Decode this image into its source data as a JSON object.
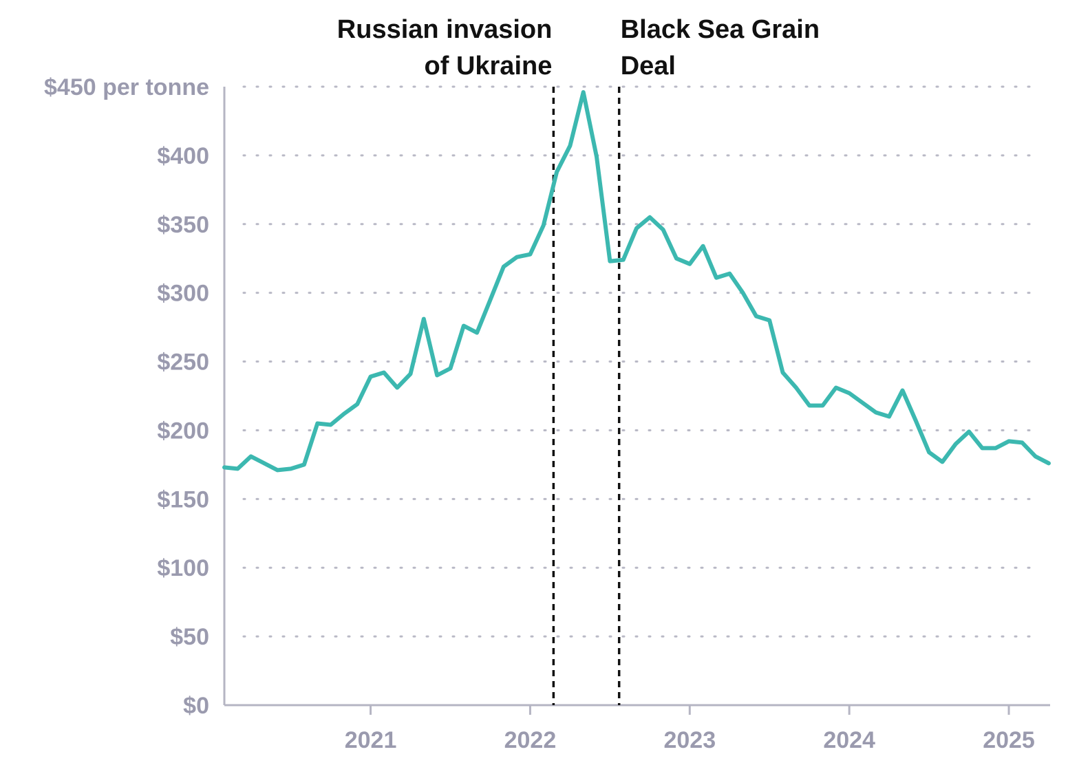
{
  "chart_data": {
    "type": "line",
    "title": "",
    "xlabel": "",
    "ylabel": "",
    "y_unit_label": "per tonne",
    "ylim": [
      0,
      450
    ],
    "xlim": [
      "2020-02",
      "2025-04"
    ],
    "grid": true,
    "grid_style": "dotted horizontal",
    "y_ticks": [
      {
        "value": 0,
        "label": "$0"
      },
      {
        "value": 50,
        "label": "$50"
      },
      {
        "value": 100,
        "label": "$100"
      },
      {
        "value": 150,
        "label": "$150"
      },
      {
        "value": 200,
        "label": "$200"
      },
      {
        "value": 250,
        "label": "$250"
      },
      {
        "value": 300,
        "label": "$300"
      },
      {
        "value": 350,
        "label": "$350"
      },
      {
        "value": 400,
        "label": "$400"
      },
      {
        "value": 450,
        "label": "$450 per tonne"
      }
    ],
    "x_ticks": [
      {
        "value": "2021-01",
        "label": "2021"
      },
      {
        "value": "2022-01",
        "label": "2022"
      },
      {
        "value": "2023-01",
        "label": "2023"
      },
      {
        "value": "2024-01",
        "label": "2024"
      },
      {
        "value": "2025-01",
        "label": "2025"
      }
    ],
    "series": [
      {
        "color": "#3cb8b0",
        "x": [
          "2020-02",
          "2020-03",
          "2020-04",
          "2020-05",
          "2020-06",
          "2020-07",
          "2020-08",
          "2020-09",
          "2020-10",
          "2020-11",
          "2020-12",
          "2021-01",
          "2021-02",
          "2021-03",
          "2021-04",
          "2021-05",
          "2021-06",
          "2021-07",
          "2021-08",
          "2021-09",
          "2021-10",
          "2021-11",
          "2021-12",
          "2022-01",
          "2022-02",
          "2022-03",
          "2022-04",
          "2022-05",
          "2022-06",
          "2022-07",
          "2022-08",
          "2022-09",
          "2022-10",
          "2022-11",
          "2022-12",
          "2023-01",
          "2023-02",
          "2023-03",
          "2023-04",
          "2023-05",
          "2023-06",
          "2023-07",
          "2023-08",
          "2023-09",
          "2023-10",
          "2023-11",
          "2023-12",
          "2024-01",
          "2024-02",
          "2024-03",
          "2024-04",
          "2024-05",
          "2024-06",
          "2024-07",
          "2024-08",
          "2024-09",
          "2024-10",
          "2024-11",
          "2024-12",
          "2025-01",
          "2025-02",
          "2025-03",
          "2025-04"
        ],
        "values": [
          173,
          172,
          181,
          176,
          171,
          172,
          175,
          205,
          204,
          212,
          219,
          239,
          242,
          231,
          241,
          281,
          240,
          245,
          276,
          271,
          295,
          319,
          326,
          328,
          349,
          388,
          407,
          446,
          399,
          323,
          324,
          347,
          355,
          346,
          325,
          321,
          334,
          311,
          314,
          300,
          283,
          280,
          242,
          231,
          218,
          218,
          231,
          227,
          220,
          213,
          210,
          229,
          207,
          184,
          177,
          190,
          199,
          187,
          187,
          192,
          191,
          181,
          176
        ]
      }
    ],
    "annotations": [
      {
        "x": "2022-02-24",
        "lines": [
          "Russian invasion",
          "of Ukraine"
        ],
        "align": "left-of-line"
      },
      {
        "x": "2022-07-22",
        "lines": [
          "Black Sea Grain",
          "Deal"
        ],
        "align": "right-of-line"
      }
    ]
  }
}
